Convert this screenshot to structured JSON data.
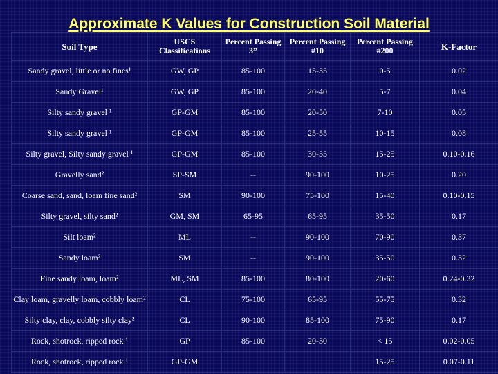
{
  "title": "Approximate K Values for Construction Soil Material",
  "colors": {
    "background": "#0a0a5c",
    "title": "#ffff66",
    "text": "#ffffff"
  },
  "table": {
    "headers": {
      "soil_type": "Soil Type",
      "uscs": "USCS Classifications",
      "passing_3in": "Percent Passing 3”",
      "passing_10": "Percent Passing #10",
      "passing_200": "Percent Passing #200",
      "k_factor": "K-Factor"
    },
    "rows": [
      {
        "soil": "Sandy gravel, little or no fines¹",
        "uscs": "GW, GP",
        "p3": "85-100",
        "p10": "15-35",
        "p200": "0-5",
        "k": "0.02"
      },
      {
        "soil": "Sandy Gravel¹",
        "uscs": "GW, GP",
        "p3": "85-100",
        "p10": "20-40",
        "p200": "5-7",
        "k": "0.04"
      },
      {
        "soil": "Silty sandy gravel ¹",
        "uscs": "GP-GM",
        "p3": "85-100",
        "p10": "20-50",
        "p200": "7-10",
        "k": "0.05"
      },
      {
        "soil": "Silty sandy gravel ¹",
        "uscs": "GP-GM",
        "p3": "85-100",
        "p10": "25-55",
        "p200": "10-15",
        "k": "0.08"
      },
      {
        "soil": "Silty gravel, Silty sandy gravel ¹",
        "uscs": "GP-GM",
        "p3": "85-100",
        "p10": "30-55",
        "p200": "15-25",
        "k": "0.10-0.16"
      },
      {
        "soil": "Gravelly sand²",
        "uscs": "SP-SM",
        "p3": "--",
        "p10": "90-100",
        "p200": "10-25",
        "k": "0.20"
      },
      {
        "soil": "Coarse sand, sand, loam fine sand²",
        "uscs": "SM",
        "p3": "90-100",
        "p10": "75-100",
        "p200": "15-40",
        "k": "0.10-0.15"
      },
      {
        "soil": "Silty gravel, silty sand²",
        "uscs": "GM, SM",
        "p3": "65-95",
        "p10": "65-95",
        "p200": "35-50",
        "k": "0.17"
      },
      {
        "soil": "Silt loam²",
        "uscs": "ML",
        "p3": "--",
        "p10": "90-100",
        "p200": "70-90",
        "k": "0.37"
      },
      {
        "soil": "Sandy loam²",
        "uscs": "SM",
        "p3": "--",
        "p10": "90-100",
        "p200": "35-50",
        "k": "0.32"
      },
      {
        "soil": "Fine sandy loam, loam²",
        "uscs": "ML, SM",
        "p3": "85-100",
        "p10": "80-100",
        "p200": "20-60",
        "k": "0.24-0.32"
      },
      {
        "soil": "Clay loam, gravelly loam, cobbly loam²",
        "uscs": "CL",
        "p3": "75-100",
        "p10": "65-95",
        "p200": "55-75",
        "k": "0.32"
      },
      {
        "soil": "Silty clay, clay, cobbly silty clay²",
        "uscs": "CL",
        "p3": "90-100",
        "p10": "85-100",
        "p200": "75-90",
        "k": "0.17"
      },
      {
        "soil": "Rock, shotrock, ripped rock ¹",
        "uscs": "GP",
        "p3": "85-100",
        "p10": "20-30",
        "p200": "< 15",
        "k": "0.02-0.05"
      },
      {
        "soil": "Rock, shotrock, ripped rock ¹",
        "uscs": "GP-GM",
        "p3": "",
        "p10": "",
        "p200": "15-25",
        "k": "0.07-0.11"
      }
    ]
  }
}
